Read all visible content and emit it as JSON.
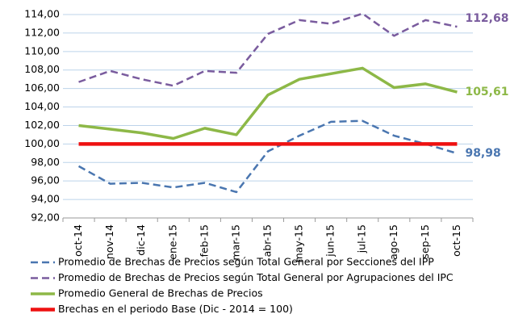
{
  "chart_data": {
    "type": "line",
    "categories": [
      "oct-14",
      "nov-14",
      "dic-14",
      "ene-15",
      "feb-15",
      "mar-15",
      "abr-15",
      "may-15",
      "jun-15",
      "jul-15",
      "ago-15",
      "sep-15",
      "oct-15"
    ],
    "series": [
      {
        "name": "Promedio de Brechas de Precios según Total General por Secciones del IPP",
        "color": "#4a76b0",
        "style": "dashed",
        "values": [
          97.6,
          95.7,
          95.8,
          95.3,
          95.8,
          94.8,
          99.2,
          100.9,
          102.4,
          102.5,
          100.9,
          100.0,
          98.98
        ],
        "value_labels": [
          null,
          null,
          null,
          null,
          null,
          null,
          null,
          null,
          null,
          null,
          null,
          null,
          "98,98"
        ]
      },
      {
        "name": "Promedio de Brechas de Precios según Total General por Agrupaciones del IPC",
        "color": "#7a5c9e",
        "style": "dashed",
        "values": [
          106.7,
          107.9,
          107.0,
          106.3,
          107.9,
          107.7,
          111.9,
          113.4,
          113.0,
          114.1,
          111.7,
          113.4,
          112.68
        ],
        "value_labels": [
          null,
          null,
          null,
          null,
          null,
          null,
          null,
          null,
          null,
          null,
          null,
          null,
          "112,68"
        ]
      },
      {
        "name": "Promedio General de Brechas de Precios",
        "color": "#8db847",
        "style": "solid",
        "values": [
          102.0,
          101.6,
          101.2,
          100.6,
          101.7,
          101.0,
          105.3,
          107.0,
          107.6,
          108.2,
          106.1,
          106.5,
          105.61
        ],
        "value_labels": [
          null,
          null,
          null,
          null,
          null,
          null,
          null,
          null,
          null,
          null,
          null,
          null,
          "105,61"
        ]
      },
      {
        "name": "Brechas en el periodo Base (Dic - 2014 = 100)",
        "color": "#ee1111",
        "style": "solid",
        "values": [
          100,
          100,
          100,
          100,
          100,
          100,
          100,
          100,
          100,
          100,
          100,
          100,
          100
        ]
      }
    ],
    "ylim": [
      92,
      114
    ],
    "yticks": [
      {
        "value": 92,
        "label": "92,00"
      },
      {
        "value": 94,
        "label": "94,00"
      },
      {
        "value": 96,
        "label": "96,00"
      },
      {
        "value": 98,
        "label": "98,00"
      },
      {
        "value": 100,
        "label": "100,00"
      },
      {
        "value": 102,
        "label": "102,00"
      },
      {
        "value": 104,
        "label": "104,00"
      },
      {
        "value": 106,
        "label": "106,00"
      },
      {
        "value": 108,
        "label": "108,00"
      },
      {
        "value": 110,
        "label": "110,00"
      },
      {
        "value": 112,
        "label": "112,00"
      },
      {
        "value": 114,
        "label": "114,00"
      }
    ],
    "grid": true,
    "legend": "bottom"
  }
}
